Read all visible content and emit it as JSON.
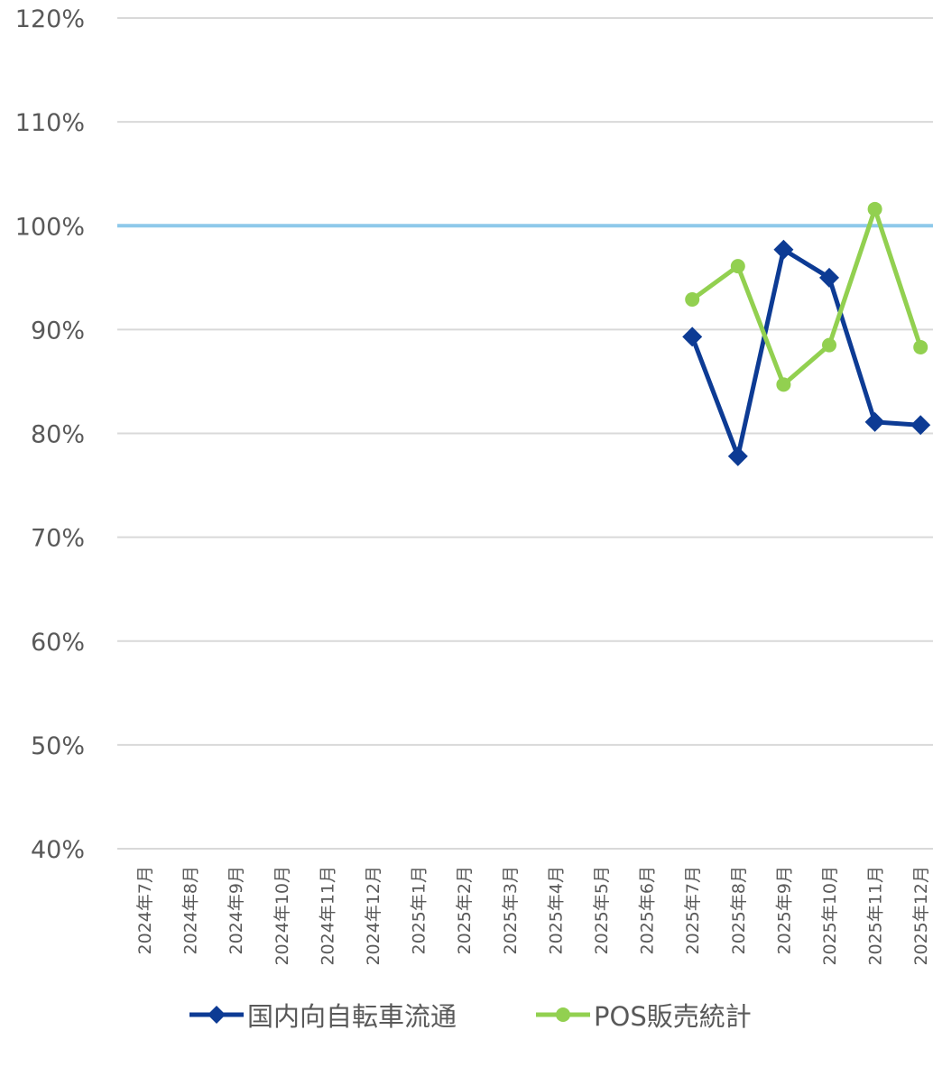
{
  "chart_data": {
    "type": "line",
    "categories": [
      "2024年7月",
      "2024年8月",
      "2024年9月",
      "2024年10月",
      "2024年11月",
      "2024年12月",
      "2025年1月",
      "2025年2月",
      "2025年3月",
      "2025年4月",
      "2025年5月",
      "2025年6月",
      "2025年7月",
      "2025年8月",
      "2025年9月",
      "2025年10月",
      "2025年11月",
      "2025年12月"
    ],
    "series": [
      {
        "name": "国内向自転車流通",
        "color": "#0d3b94",
        "marker": "diamond",
        "values": [
          null,
          null,
          null,
          null,
          null,
          null,
          null,
          null,
          null,
          null,
          null,
          null,
          89.3,
          77.8,
          97.7,
          95.0,
          81.1,
          80.8
        ]
      },
      {
        "name": "POS販売統計",
        "color": "#92d050",
        "marker": "circle",
        "values": [
          null,
          null,
          null,
          null,
          null,
          null,
          null,
          null,
          null,
          null,
          null,
          null,
          92.9,
          96.1,
          84.7,
          88.5,
          101.6,
          88.3
        ]
      }
    ],
    "reference_line": {
      "value": 100,
      "color": "#8ec9ea"
    },
    "ylim": [
      40,
      120
    ],
    "yticks": [
      "40%",
      "50%",
      "60%",
      "70%",
      "80%",
      "90%",
      "100%",
      "110%",
      "120%"
    ],
    "ytick_values": [
      40,
      50,
      60,
      70,
      80,
      90,
      100,
      110,
      120
    ],
    "grid": true,
    "legend_position": "bottom",
    "title": "",
    "xlabel": "",
    "ylabel": ""
  }
}
